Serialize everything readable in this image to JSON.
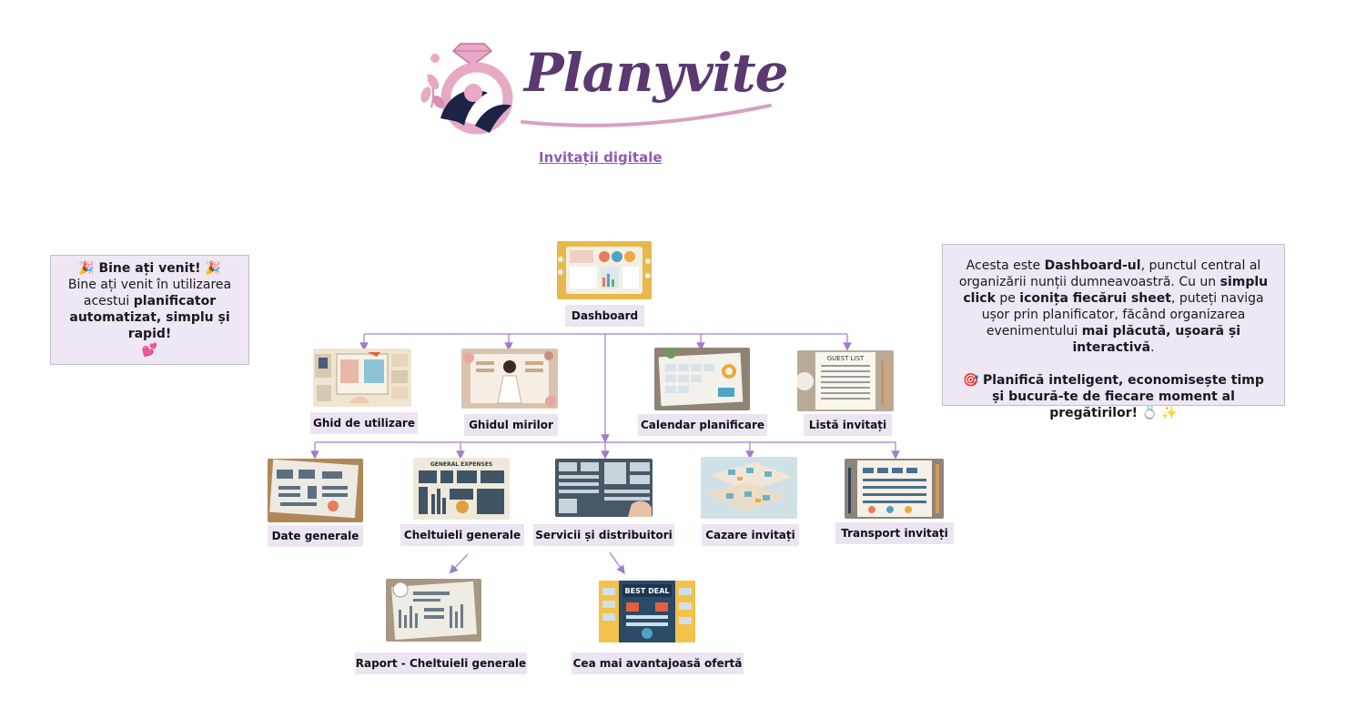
{
  "logo": {
    "brand_name": "Planyvite"
  },
  "subtitle": {
    "link_text": "Invitații digitale"
  },
  "welcome": {
    "title": "🎉 Bine ați venit! 🎉",
    "line1": "Bine ați venit în utilizarea",
    "line2_prefix": "acestui ",
    "line2_bold": "planificator",
    "line3_bold": "automatizat, simplu și rapid!",
    "emoji": "💕"
  },
  "info": {
    "p1_a": "Acesta este ",
    "p1_b": "Dashboard-ul",
    "p1_c": ", punctul central al organizării nunții dumneavoastră. Cu un ",
    "p1_d": "simplu click",
    "p1_e": " pe ",
    "p1_f": "iconița fiecărui sheet",
    "p1_g": ", puteți naviga ușor prin planificator, făcând organizarea evenimentului ",
    "p1_h": "mai plăcută, ușoară și interactivă",
    "p1_i": ".",
    "p2_emoji": "🎯 ",
    "p2_bold": "Planifică inteligent, economisește timp și bucură-te de fiecare moment al pregătirilor!",
    "p2_tail": " 💍 ✨"
  },
  "sheets": {
    "dashboard": "Dashboard",
    "ghid_utilizare": "Ghid de utilizare",
    "ghidul_mirilor": "Ghidul mirilor",
    "calendar": "Calendar planificare",
    "lista_invitati": "Listă invitați",
    "date_generale": "Date generale",
    "cheltuieli": "Cheltuieli generale",
    "servicii": "Servicii și distribuitori",
    "cazare": "Cazare invitați",
    "transport": "Transport invitați",
    "raport": "Raport - Cheltuieli generale",
    "oferta": "Cea mai avantajoasă ofertă"
  },
  "thumb_texts": {
    "lista_invitati_heading": "GUEST LIST",
    "cheltuieli_heading": "GENERAL EXPENSES",
    "oferta_heading": "BEST DEAL"
  },
  "colors": {
    "accent": "#8d5bb8",
    "connector": "#a47cc9",
    "box_bg": "#efe7f3",
    "label_bg": "#ede4f2",
    "logo_pink": "#e6a9c6",
    "logo_navy": "#1c2347",
    "logo_purple": "#5a3870"
  },
  "icons": [
    "diamond-ring-icon",
    "party-popper-icon",
    "target-icon",
    "ring-icon",
    "sparkles-icon"
  ]
}
